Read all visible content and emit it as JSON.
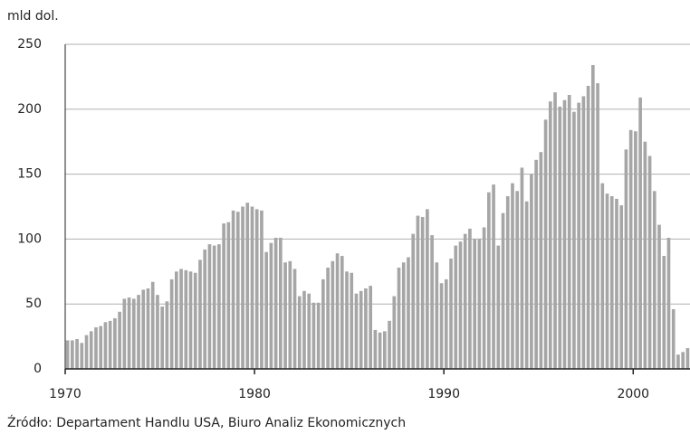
{
  "chart_data": {
    "type": "bar",
    "y_label": "mld dol.",
    "source": "Źródło: Departament Handlu USA, Biuro Analiz Ekonomicznych",
    "x": [
      1970,
      1970.25,
      1970.5,
      1970.75,
      1971,
      1971.25,
      1971.5,
      1971.75,
      1972,
      1972.25,
      1972.5,
      1972.75,
      1973,
      1973.25,
      1973.5,
      1973.75,
      1974,
      1974.25,
      1974.5,
      1974.75,
      1975,
      1975.25,
      1975.5,
      1975.75,
      1976,
      1976.25,
      1976.5,
      1976.75,
      1977,
      1977.25,
      1977.5,
      1977.75,
      1978,
      1978.25,
      1978.5,
      1978.75,
      1979,
      1979.25,
      1979.5,
      1979.75,
      1980,
      1980.25,
      1980.5,
      1980.75,
      1981,
      1981.25,
      1981.5,
      1981.75,
      1982,
      1982.25,
      1982.5,
      1982.75,
      1983,
      1983.25,
      1983.5,
      1983.75,
      1984,
      1984.25,
      1984.5,
      1984.75,
      1985,
      1985.25,
      1985.5,
      1985.75,
      1986,
      1986.25,
      1986.5,
      1986.75,
      1987,
      1987.25,
      1987.5,
      1987.75,
      1988,
      1988.25,
      1988.5,
      1988.75,
      1989,
      1989.25,
      1989.5,
      1989.75,
      1990,
      1990.25,
      1990.5,
      1990.75,
      1991,
      1991.25,
      1991.5,
      1991.75,
      1992,
      1992.25,
      1992.5,
      1992.75,
      1993,
      1993.25,
      1993.5,
      1993.75,
      1994,
      1994.25,
      1994.5,
      1994.75,
      1995,
      1995.25,
      1995.5,
      1995.75,
      1996,
      1996.25,
      1996.5,
      1996.75,
      1997,
      1997.25,
      1997.5,
      1997.75,
      1998,
      1998.25,
      1998.5,
      1998.75,
      1999,
      1999.25,
      1999.5,
      1999.75,
      2000,
      2000.25,
      2000.5,
      2000.75,
      2001,
      2001.25,
      2001.5,
      2001.75,
      2002,
      2002.25,
      2002.5,
      2002.75
    ],
    "values": [
      22,
      22,
      23,
      20,
      26,
      29,
      32,
      33,
      36,
      37,
      39,
      44,
      54,
      55,
      54,
      57,
      61,
      62,
      67,
      57,
      48,
      52,
      69,
      75,
      77,
      76,
      75,
      74,
      84,
      92,
      96,
      95,
      96,
      112,
      113,
      122,
      121,
      125,
      128,
      125,
      123,
      122,
      90,
      97,
      101,
      101,
      82,
      83,
      77,
      56,
      60,
      58,
      51,
      51,
      69,
      78,
      83,
      89,
      87,
      75,
      74,
      58,
      60,
      62,
      64,
      30,
      28,
      29,
      37,
      56,
      78,
      82,
      86,
      104,
      118,
      117,
      123,
      103,
      82,
      66,
      69,
      85,
      95,
      98,
      104,
      108,
      100,
      100,
      109,
      136,
      142,
      95,
      120,
      133,
      143,
      137,
      155,
      129,
      150,
      161,
      167,
      192,
      206,
      213,
      202,
      207,
      211,
      198,
      205,
      210,
      218,
      234,
      220,
      143,
      135,
      133,
      131,
      126,
      169,
      184,
      183,
      209,
      175,
      164,
      137,
      111,
      87,
      101,
      46,
      11,
      13,
      16
    ],
    "color": "#a6a6a6",
    "xlim": [
      1970,
      2003
    ],
    "xticks": [
      1970,
      1980,
      1990,
      2000
    ],
    "ylim": [
      0,
      250
    ],
    "yticks": [
      0,
      50,
      100,
      150,
      200,
      250
    ],
    "grid": true
  }
}
